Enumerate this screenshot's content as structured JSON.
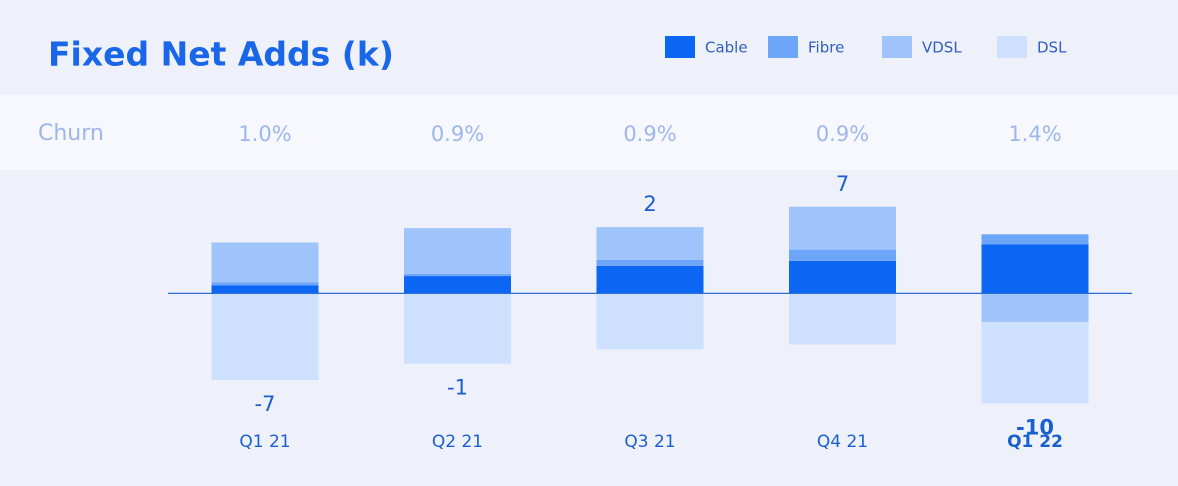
{
  "chart_data": {
    "type": "stacked_bar",
    "title": "Fixed Net Adds (k)",
    "categories": [
      "Q1 21",
      "Q2 21",
      "Q3 21",
      "Q4 21",
      "Q1 22"
    ],
    "series": [
      {
        "name": "Cable",
        "color": "#0b66f4",
        "values": [
          1.6,
          3.4,
          5.4,
          6.4,
          9.6
        ]
      },
      {
        "name": "Fibre",
        "color": "#6da6f8",
        "values": [
          0.6,
          0.4,
          1.2,
          2.2,
          2.0
        ]
      },
      {
        "name": "VDSL",
        "color": "#9fc3fb",
        "values": [
          7.8,
          9.0,
          6.4,
          8.4,
          -5.6
        ]
      },
      {
        "name": "DSL",
        "color": "#cde0fd",
        "values": [
          -17.0,
          -13.8,
          -11.0,
          -10.0,
          -16.0
        ]
      }
    ],
    "totals": [
      -7,
      -1,
      2,
      7,
      -10
    ],
    "churn": {
      "label": "Churn",
      "values": [
        1.0,
        0.9,
        0.9,
        0.9,
        1.4
      ],
      "value_labels": [
        "1.0%",
        "0.9%",
        "0.9%",
        "0.9%",
        "1.4%"
      ]
    },
    "ylim": [
      -27,
      25
    ]
  }
}
